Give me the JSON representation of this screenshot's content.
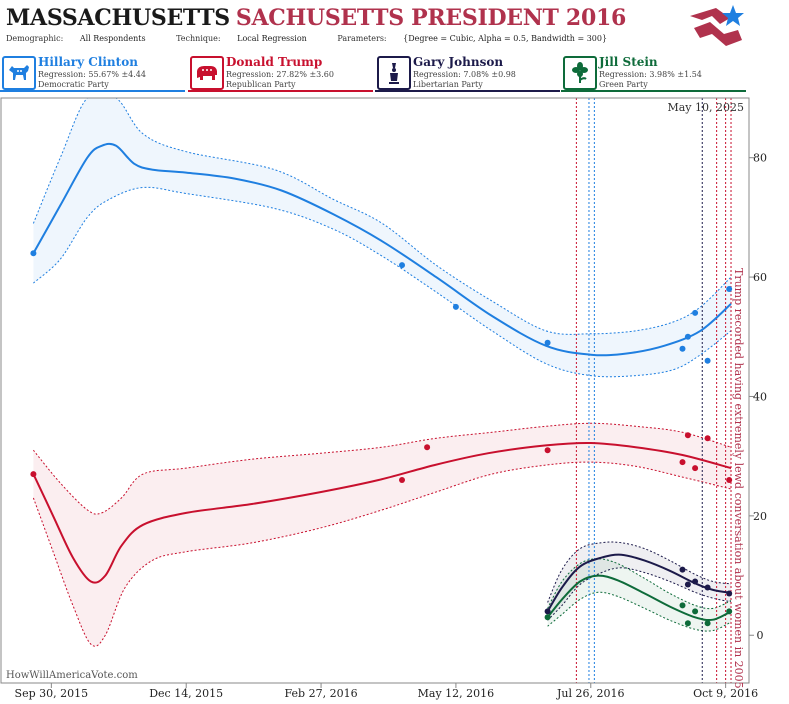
{
  "header": {
    "title_part1": "MASSACHUSETTS",
    "title_part2": "SACHUSETTS PRESIDENT 2016",
    "demographic_label": "Demographic:",
    "demographic_value": "All Respondents",
    "technique_label": "Technique:",
    "technique_value": "Local Regression",
    "parameters_label": "Parameters:",
    "parameters_value": "{Degree = Cubic, Alpha = 0.5, Bandwidth = 300}"
  },
  "candidates": [
    {
      "name": "Hillary Clinton",
      "regression": "Regression: 55.67% ±4.44",
      "party": "Democratic Party",
      "color": "#1f7fe0",
      "icon": "donkey-icon"
    },
    {
      "name": "Donald Trump",
      "regression": "Regression: 27.82% ±3.60",
      "party": "Republican Party",
      "color": "#c8102e",
      "icon": "elephant-icon"
    },
    {
      "name": "Gary Johnson",
      "regression": "Regression: 7.08% ±0.98",
      "party": "Libertarian Party",
      "color": "#1c1a4a",
      "icon": "liberty-statue-icon"
    },
    {
      "name": "Jill Stein",
      "regression": "Regression: 3.98% ±1.54",
      "party": "Green Party",
      "color": "#0e6b3a",
      "icon": "flower-icon"
    }
  ],
  "chart_data": {
    "type": "line",
    "date_stamp": "May 10, 2025",
    "watermark": "HowWillAmericaVote.com",
    "annotation": "Trump recorded having extremely lewd conversation about women in 2005",
    "x_tick_labels": [
      "Sep 30, 2015",
      "Dec 14, 2015",
      "Feb 27, 2016",
      "May 12, 2016",
      "Jul 26, 2016",
      "Oct 9, 2016"
    ],
    "x_tick_dates": [
      "2015-09-30",
      "2015-12-14",
      "2016-02-27",
      "2016-05-12",
      "2016-07-26",
      "2016-10-09"
    ],
    "xlim": [
      "2015-09-02",
      "2016-10-22"
    ],
    "ylim": [
      -8,
      90
    ],
    "y_ticks": [
      0,
      20,
      40,
      60,
      80
    ],
    "grid": false,
    "event_lines": [
      {
        "date": "2016-07-18",
        "color": "#c8102e"
      },
      {
        "date": "2016-07-25",
        "color": "#1f7fe0"
      },
      {
        "date": "2016-07-28",
        "color": "#1f7fe0"
      },
      {
        "date": "2016-09-26",
        "color": "#1c1a4a"
      },
      {
        "date": "2016-10-04",
        "color": "#c8102e"
      },
      {
        "date": "2016-10-09",
        "color": "#c8102e"
      },
      {
        "date": "2016-10-12",
        "color": "#c8102e"
      }
    ],
    "series": [
      {
        "name": "Hillary Clinton",
        "color": "#1f7fe0",
        "points": [
          [
            "2015-09-20",
            64
          ],
          [
            "2016-04-12",
            62
          ],
          [
            "2016-05-12",
            55
          ],
          [
            "2016-07-02",
            49
          ],
          [
            "2016-09-15",
            48
          ],
          [
            "2016-09-18",
            50
          ],
          [
            "2016-09-22",
            54
          ],
          [
            "2016-09-29",
            46
          ],
          [
            "2016-10-11",
            58
          ]
        ],
        "trend": [
          [
            "2015-09-20",
            64
          ],
          [
            "2015-10-05",
            72
          ],
          [
            "2015-10-20",
            80
          ],
          [
            "2015-10-28",
            82
          ],
          [
            "2015-11-05",
            82
          ],
          [
            "2015-11-15",
            79
          ],
          [
            "2015-11-25",
            78
          ],
          [
            "2015-12-14",
            77.5
          ],
          [
            "2016-01-10",
            76.5
          ],
          [
            "2016-02-05",
            74.5
          ],
          [
            "2016-03-05",
            70.5
          ],
          [
            "2016-04-01",
            66
          ],
          [
            "2016-05-01",
            60
          ],
          [
            "2016-06-01",
            53.5
          ],
          [
            "2016-07-01",
            48.5
          ],
          [
            "2016-07-26",
            47
          ],
          [
            "2016-08-15",
            47.2
          ],
          [
            "2016-09-05",
            48.5
          ],
          [
            "2016-09-25",
            51
          ],
          [
            "2016-10-12",
            55.5
          ]
        ],
        "upper": [
          [
            "2015-09-20",
            69
          ],
          [
            "2015-10-05",
            80
          ],
          [
            "2015-10-20",
            90
          ],
          [
            "2015-11-05",
            90
          ],
          [
            "2015-11-20",
            84
          ],
          [
            "2015-12-14",
            81
          ],
          [
            "2016-02-01",
            78
          ],
          [
            "2016-03-05",
            73
          ],
          [
            "2016-04-01",
            69
          ],
          [
            "2016-05-01",
            62
          ],
          [
            "2016-06-01",
            56
          ],
          [
            "2016-07-01",
            51
          ],
          [
            "2016-07-26",
            50.5
          ],
          [
            "2016-08-20",
            51
          ],
          [
            "2016-09-10",
            52.5
          ],
          [
            "2016-09-25",
            55
          ],
          [
            "2016-10-12",
            60
          ]
        ],
        "lower": [
          [
            "2015-09-20",
            59
          ],
          [
            "2015-10-05",
            63
          ],
          [
            "2015-10-20",
            70
          ],
          [
            "2015-11-01",
            73
          ],
          [
            "2015-11-20",
            75
          ],
          [
            "2015-12-14",
            74
          ],
          [
            "2016-02-01",
            71.5
          ],
          [
            "2016-03-05",
            68
          ],
          [
            "2016-04-01",
            63.5
          ],
          [
            "2016-05-01",
            57.5
          ],
          [
            "2016-06-01",
            51
          ],
          [
            "2016-07-01",
            45.5
          ],
          [
            "2016-07-26",
            43.5
          ],
          [
            "2016-08-20",
            43.5
          ],
          [
            "2016-09-10",
            44.5
          ],
          [
            "2016-09-25",
            47
          ],
          [
            "2016-10-12",
            51
          ]
        ]
      },
      {
        "name": "Donald Trump",
        "color": "#c8102e",
        "points": [
          [
            "2015-09-20",
            27
          ],
          [
            "2016-04-12",
            26
          ],
          [
            "2016-04-26",
            31.5
          ],
          [
            "2016-07-02",
            31
          ],
          [
            "2016-09-15",
            29
          ],
          [
            "2016-09-18",
            33.5
          ],
          [
            "2016-09-22",
            28
          ],
          [
            "2016-09-29",
            33
          ],
          [
            "2016-10-11",
            26
          ]
        ],
        "trend": [
          [
            "2015-09-20",
            27
          ],
          [
            "2015-10-01",
            20
          ],
          [
            "2015-10-12",
            13
          ],
          [
            "2015-10-22",
            9
          ],
          [
            "2015-10-30",
            10
          ],
          [
            "2015-11-08",
            15
          ],
          [
            "2015-11-20",
            18.5
          ],
          [
            "2015-12-14",
            20.5
          ],
          [
            "2016-01-20",
            22
          ],
          [
            "2016-02-27",
            24
          ],
          [
            "2016-03-30",
            26
          ],
          [
            "2016-04-30",
            28.5
          ],
          [
            "2016-05-30",
            30.5
          ],
          [
            "2016-07-01",
            31.8
          ],
          [
            "2016-07-26",
            32.2
          ],
          [
            "2016-08-20",
            31.5
          ],
          [
            "2016-09-15",
            30.2
          ],
          [
            "2016-10-12",
            28
          ]
        ],
        "upper": [
          [
            "2015-09-20",
            31
          ],
          [
            "2015-10-05",
            25.5
          ],
          [
            "2015-10-20",
            21
          ],
          [
            "2015-10-28",
            20.5
          ],
          [
            "2015-11-08",
            23
          ],
          [
            "2015-11-20",
            27
          ],
          [
            "2015-12-14",
            28
          ],
          [
            "2016-01-20",
            29.5
          ],
          [
            "2016-02-27",
            30.5
          ],
          [
            "2016-04-01",
            31.5
          ],
          [
            "2016-05-01",
            33
          ],
          [
            "2016-06-01",
            34
          ],
          [
            "2016-07-01",
            35
          ],
          [
            "2016-07-26",
            35.5
          ],
          [
            "2016-08-20",
            35
          ],
          [
            "2016-09-15",
            34
          ],
          [
            "2016-10-12",
            31.5
          ]
        ],
        "lower": [
          [
            "2015-09-20",
            23
          ],
          [
            "2015-10-01",
            14
          ],
          [
            "2015-10-12",
            5
          ],
          [
            "2015-10-22",
            -1.5
          ],
          [
            "2015-10-30",
            0
          ],
          [
            "2015-11-10",
            8
          ],
          [
            "2015-11-25",
            12.5
          ],
          [
            "2015-12-14",
            14
          ],
          [
            "2016-01-20",
            15.5
          ],
          [
            "2016-02-27",
            18
          ],
          [
            "2016-04-01",
            21
          ],
          [
            "2016-05-01",
            24
          ],
          [
            "2016-06-01",
            27
          ],
          [
            "2016-07-01",
            28.5
          ],
          [
            "2016-07-26",
            29
          ],
          [
            "2016-08-20",
            28.3
          ],
          [
            "2016-09-15",
            26.5
          ],
          [
            "2016-10-12",
            24.5
          ]
        ]
      },
      {
        "name": "Gary Johnson",
        "color": "#1c1a4a",
        "points": [
          [
            "2016-07-02",
            4
          ],
          [
            "2016-09-15",
            11
          ],
          [
            "2016-09-18",
            8.5
          ],
          [
            "2016-09-22",
            9
          ],
          [
            "2016-09-29",
            8
          ],
          [
            "2016-10-11",
            7
          ]
        ],
        "trend": [
          [
            "2016-07-02",
            4
          ],
          [
            "2016-07-10",
            8
          ],
          [
            "2016-07-20",
            11.5
          ],
          [
            "2016-08-01",
            13
          ],
          [
            "2016-08-12",
            13.5
          ],
          [
            "2016-08-25",
            12.5
          ],
          [
            "2016-09-08",
            10.8
          ],
          [
            "2016-09-22",
            8.7
          ],
          [
            "2016-10-02",
            7.6
          ],
          [
            "2016-10-12",
            7.1
          ]
        ],
        "upper": [
          [
            "2016-07-02",
            5.5
          ],
          [
            "2016-07-10",
            11
          ],
          [
            "2016-07-20",
            14.5
          ],
          [
            "2016-08-01",
            15.5
          ],
          [
            "2016-08-12",
            15.5
          ],
          [
            "2016-08-25",
            14.5
          ],
          [
            "2016-09-08",
            12.5
          ],
          [
            "2016-09-22",
            10.2
          ],
          [
            "2016-10-02",
            9
          ],
          [
            "2016-10-12",
            8.6
          ]
        ],
        "lower": [
          [
            "2016-07-02",
            2.5
          ],
          [
            "2016-07-10",
            5
          ],
          [
            "2016-07-20",
            8.5
          ],
          [
            "2016-08-01",
            10.5
          ],
          [
            "2016-08-12",
            11.3
          ],
          [
            "2016-08-25",
            10.5
          ],
          [
            "2016-09-08",
            9
          ],
          [
            "2016-09-22",
            7.2
          ],
          [
            "2016-10-02",
            6.2
          ],
          [
            "2016-10-12",
            5.6
          ]
        ]
      },
      {
        "name": "Jill Stein",
        "color": "#0e6b3a",
        "points": [
          [
            "2016-07-02",
            3
          ],
          [
            "2016-09-15",
            5
          ],
          [
            "2016-09-18",
            2
          ],
          [
            "2016-09-22",
            4
          ],
          [
            "2016-09-29",
            2
          ],
          [
            "2016-10-11",
            4
          ]
        ],
        "trend": [
          [
            "2016-07-02",
            3
          ],
          [
            "2016-07-10",
            6
          ],
          [
            "2016-07-20",
            9
          ],
          [
            "2016-07-30",
            10
          ],
          [
            "2016-08-10",
            9.2
          ],
          [
            "2016-08-25",
            7
          ],
          [
            "2016-09-08",
            4.8
          ],
          [
            "2016-09-22",
            3
          ],
          [
            "2016-10-02",
            2.6
          ],
          [
            "2016-10-12",
            4
          ]
        ],
        "upper": [
          [
            "2016-07-02",
            4.5
          ],
          [
            "2016-07-10",
            9
          ],
          [
            "2016-07-20",
            12
          ],
          [
            "2016-07-30",
            12.8
          ],
          [
            "2016-08-10",
            12
          ],
          [
            "2016-08-25",
            9.5
          ],
          [
            "2016-09-08",
            7
          ],
          [
            "2016-09-22",
            5
          ],
          [
            "2016-10-02",
            4.5
          ],
          [
            "2016-10-12",
            5.8
          ]
        ],
        "lower": [
          [
            "2016-07-02",
            1.5
          ],
          [
            "2016-07-10",
            3.5
          ],
          [
            "2016-07-20",
            6
          ],
          [
            "2016-07-30",
            7.2
          ],
          [
            "2016-08-10",
            6.5
          ],
          [
            "2016-08-25",
            4.5
          ],
          [
            "2016-09-08",
            2.5
          ],
          [
            "2016-09-22",
            1
          ],
          [
            "2016-10-02",
            0.8
          ],
          [
            "2016-10-12",
            2.2
          ]
        ]
      }
    ]
  }
}
